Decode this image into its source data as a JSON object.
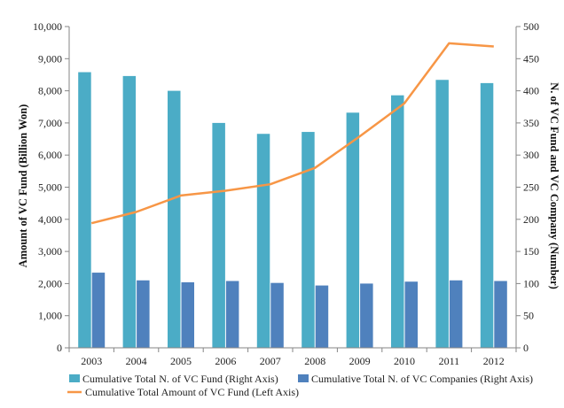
{
  "chart_data": {
    "type": "bar",
    "categories": [
      "2003",
      "2004",
      "2005",
      "2006",
      "2007",
      "2008",
      "2009",
      "2010",
      "2011",
      "2012"
    ],
    "series": [
      {
        "name": "Cumulative Total N. of VC Fund (Right Axis)",
        "type": "bar",
        "axis": "right",
        "color": "#4BACC6",
        "values": [
          429,
          423,
          400,
          350,
          333,
          336,
          366,
          393,
          417,
          412
        ]
      },
      {
        "name": "Cumulative Total N. of VC Companies (Right Axis)",
        "type": "bar",
        "axis": "right",
        "color": "#4F81BD",
        "values": [
          117,
          105,
          102,
          104,
          101,
          97,
          100,
          103,
          105,
          104
        ]
      },
      {
        "name": "Cumulative Total Amount of VC Fund (Left Axis)",
        "type": "line",
        "axis": "left",
        "color": "#F79646",
        "values": [
          3880,
          4230,
          4740,
          4890,
          5090,
          5600,
          6580,
          7610,
          9480,
          9380
        ]
      }
    ],
    "y_left": {
      "label": "Amount of VC Fund (Billion Won)",
      "range": [
        0,
        10000
      ],
      "ticks": [
        "0",
        "1,000",
        "2,000",
        "3,000",
        "4,000",
        "5,000",
        "6,000",
        "7,000",
        "8,000",
        "9,000",
        "10,000"
      ]
    },
    "y_right": {
      "label": "N. of VC Fund and VC Company (Number)",
      "range": [
        0,
        500
      ],
      "ticks": [
        "0",
        "50",
        "100",
        "150",
        "200",
        "250",
        "300",
        "350",
        "400",
        "450",
        "500"
      ]
    },
    "grid": false,
    "legend_position": "bottom"
  }
}
